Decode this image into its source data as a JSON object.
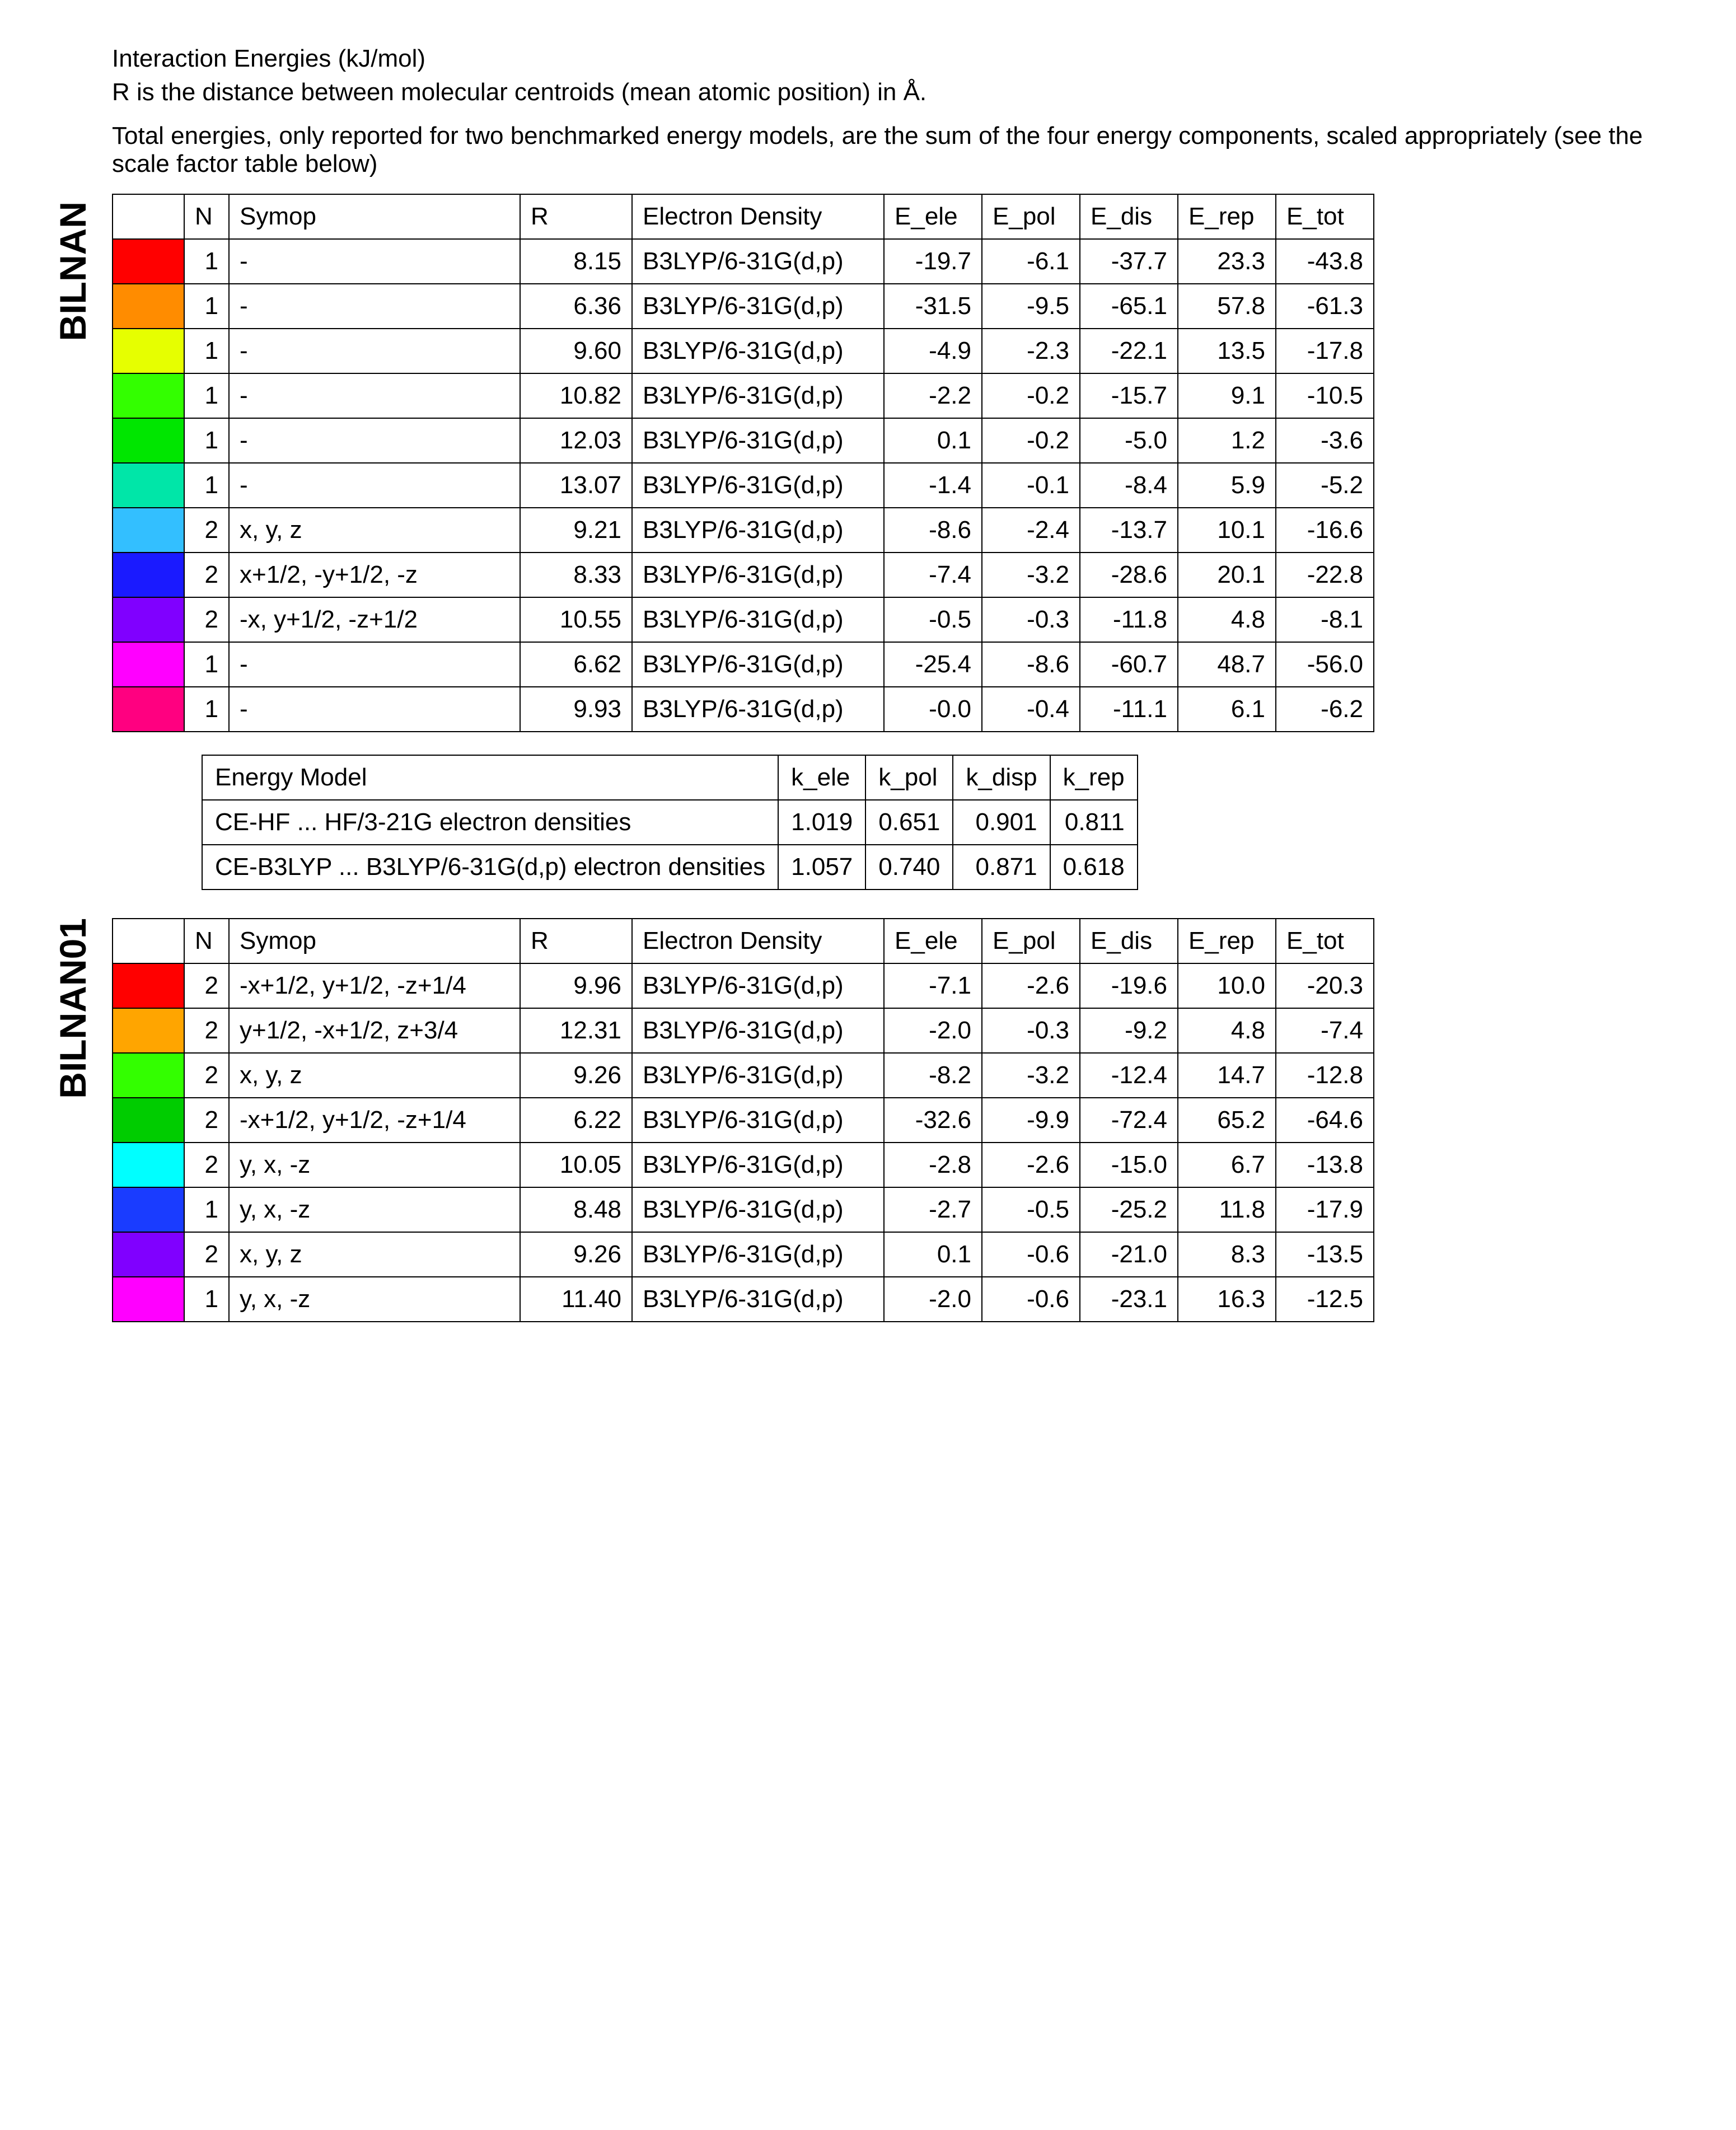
{
  "header": {
    "line1": "Interaction Energies (kJ/mol)",
    "line2": "R is the distance between molecular centroids (mean atomic position) in Å.",
    "line3": "Total energies, only reported for two benchmarked energy models, are the sum of the four energy components, scaled appropriately (see the scale factor table below)"
  },
  "labels": {
    "section1": "BILNAN",
    "section2": "BILNAN01"
  },
  "columns": {
    "N": "N",
    "Symop": "Symop",
    "R": "R",
    "ED": "Electron Density",
    "E_ele": "E_ele",
    "E_pol": "E_pol",
    "E_dis": "E_dis",
    "E_rep": "E_rep",
    "E_tot": "E_tot"
  },
  "electron_density": "B3LYP/6-31G(d,p)",
  "table1": {
    "rows": [
      {
        "color": "#ff0000",
        "N": 1,
        "Symop": "-",
        "R": "8.15",
        "E_ele": "-19.7",
        "E_pol": "-6.1",
        "E_dis": "-37.7",
        "E_rep": "23.3",
        "E_tot": "-43.8"
      },
      {
        "color": "#ff8c00",
        "N": 1,
        "Symop": "-",
        "R": "6.36",
        "E_ele": "-31.5",
        "E_pol": "-9.5",
        "E_dis": "-65.1",
        "E_rep": "57.8",
        "E_tot": "-61.3"
      },
      {
        "color": "#e6ff00",
        "N": 1,
        "Symop": "-",
        "R": "9.60",
        "E_ele": "-4.9",
        "E_pol": "-2.3",
        "E_dis": "-22.1",
        "E_rep": "13.5",
        "E_tot": "-17.8"
      },
      {
        "color": "#33ff00",
        "N": 1,
        "Symop": "-",
        "R": "10.82",
        "E_ele": "-2.2",
        "E_pol": "-0.2",
        "E_dis": "-15.7",
        "E_rep": "9.1",
        "E_tot": "-10.5"
      },
      {
        "color": "#00e600",
        "N": 1,
        "Symop": "-",
        "R": "12.03",
        "E_ele": "0.1",
        "E_pol": "-0.2",
        "E_dis": "-5.0",
        "E_rep": "1.2",
        "E_tot": "-3.6"
      },
      {
        "color": "#00e6a8",
        "N": 1,
        "Symop": "-",
        "R": "13.07",
        "E_ele": "-1.4",
        "E_pol": "-0.1",
        "E_dis": "-8.4",
        "E_rep": "5.9",
        "E_tot": "-5.2"
      },
      {
        "color": "#33bfff",
        "N": 2,
        "Symop": "x, y, z",
        "R": "9.21",
        "E_ele": "-8.6",
        "E_pol": "-2.4",
        "E_dis": "-13.7",
        "E_rep": "10.1",
        "E_tot": "-16.6"
      },
      {
        "color": "#1a1aff",
        "N": 2,
        "Symop": "x+1/2, -y+1/2, -z",
        "R": "8.33",
        "E_ele": "-7.4",
        "E_pol": "-3.2",
        "E_dis": "-28.6",
        "E_rep": "20.1",
        "E_tot": "-22.8"
      },
      {
        "color": "#8000ff",
        "N": 2,
        "Symop": "-x, y+1/2, -z+1/2",
        "R": "10.55",
        "E_ele": "-0.5",
        "E_pol": "-0.3",
        "E_dis": "-11.8",
        "E_rep": "4.8",
        "E_tot": "-8.1"
      },
      {
        "color": "#ff00ff",
        "N": 1,
        "Symop": "-",
        "R": "6.62",
        "E_ele": "-25.4",
        "E_pol": "-8.6",
        "E_dis": "-60.7",
        "E_rep": "48.7",
        "E_tot": "-56.0"
      },
      {
        "color": "#ff0080",
        "N": 1,
        "Symop": "-",
        "R": "9.93",
        "E_ele": "-0.0",
        "E_pol": "-0.4",
        "E_dis": "-11.1",
        "E_rep": "6.1",
        "E_tot": "-6.2"
      }
    ]
  },
  "scale": {
    "columns": {
      "model": "Energy Model",
      "k_ele": "k_ele",
      "k_pol": "k_pol",
      "k_disp": "k_disp",
      "k_rep": "k_rep"
    },
    "rows": [
      {
        "model": "CE-HF ... HF/3-21G electron densities",
        "k_ele": "1.019",
        "k_pol": "0.651",
        "k_disp": "0.901",
        "k_rep": "0.811"
      },
      {
        "model": "CE-B3LYP ... B3LYP/6-31G(d,p) electron densities",
        "k_ele": "1.057",
        "k_pol": "0.740",
        "k_disp": "0.871",
        "k_rep": "0.618"
      }
    ]
  },
  "table2": {
    "rows": [
      {
        "color": "#ff0000",
        "N": 2,
        "Symop": "-x+1/2, y+1/2, -z+1/4",
        "R": "9.96",
        "E_ele": "-7.1",
        "E_pol": "-2.6",
        "E_dis": "-19.6",
        "E_rep": "10.0",
        "E_tot": "-20.3"
      },
      {
        "color": "#ffa500",
        "N": 2,
        "Symop": "y+1/2, -x+1/2, z+3/4",
        "R": "12.31",
        "E_ele": "-2.0",
        "E_pol": "-0.3",
        "E_dis": "-9.2",
        "E_rep": "4.8",
        "E_tot": "-7.4"
      },
      {
        "color": "#33ff00",
        "N": 2,
        "Symop": "x, y, z",
        "R": "9.26",
        "E_ele": "-8.2",
        "E_pol": "-3.2",
        "E_dis": "-12.4",
        "E_rep": "14.7",
        "E_tot": "-12.8"
      },
      {
        "color": "#00cc00",
        "N": 2,
        "Symop": "-x+1/2, y+1/2, -z+1/4",
        "R": "6.22",
        "E_ele": "-32.6",
        "E_pol": "-9.9",
        "E_dis": "-72.4",
        "E_rep": "65.2",
        "E_tot": "-64.6"
      },
      {
        "color": "#00ffff",
        "N": 2,
        "Symop": "y, x, -z",
        "R": "10.05",
        "E_ele": "-2.8",
        "E_pol": "-2.6",
        "E_dis": "-15.0",
        "E_rep": "6.7",
        "E_tot": "-13.8"
      },
      {
        "color": "#1a3cff",
        "N": 1,
        "Symop": "y, x, -z",
        "R": "8.48",
        "E_ele": "-2.7",
        "E_pol": "-0.5",
        "E_dis": "-25.2",
        "E_rep": "11.8",
        "E_tot": "-17.9"
      },
      {
        "color": "#8000ff",
        "N": 2,
        "Symop": "x, y, z",
        "R": "9.26",
        "E_ele": "0.1",
        "E_pol": "-0.6",
        "E_dis": "-21.0",
        "E_rep": "8.3",
        "E_tot": "-13.5"
      },
      {
        "color": "#ff00ff",
        "N": 1,
        "Symop": "y, x, -z",
        "R": "11.40",
        "E_ele": "-2.0",
        "E_pol": "-0.6",
        "E_dis": "-23.1",
        "E_rep": "16.3",
        "E_tot": "-12.5"
      }
    ]
  }
}
